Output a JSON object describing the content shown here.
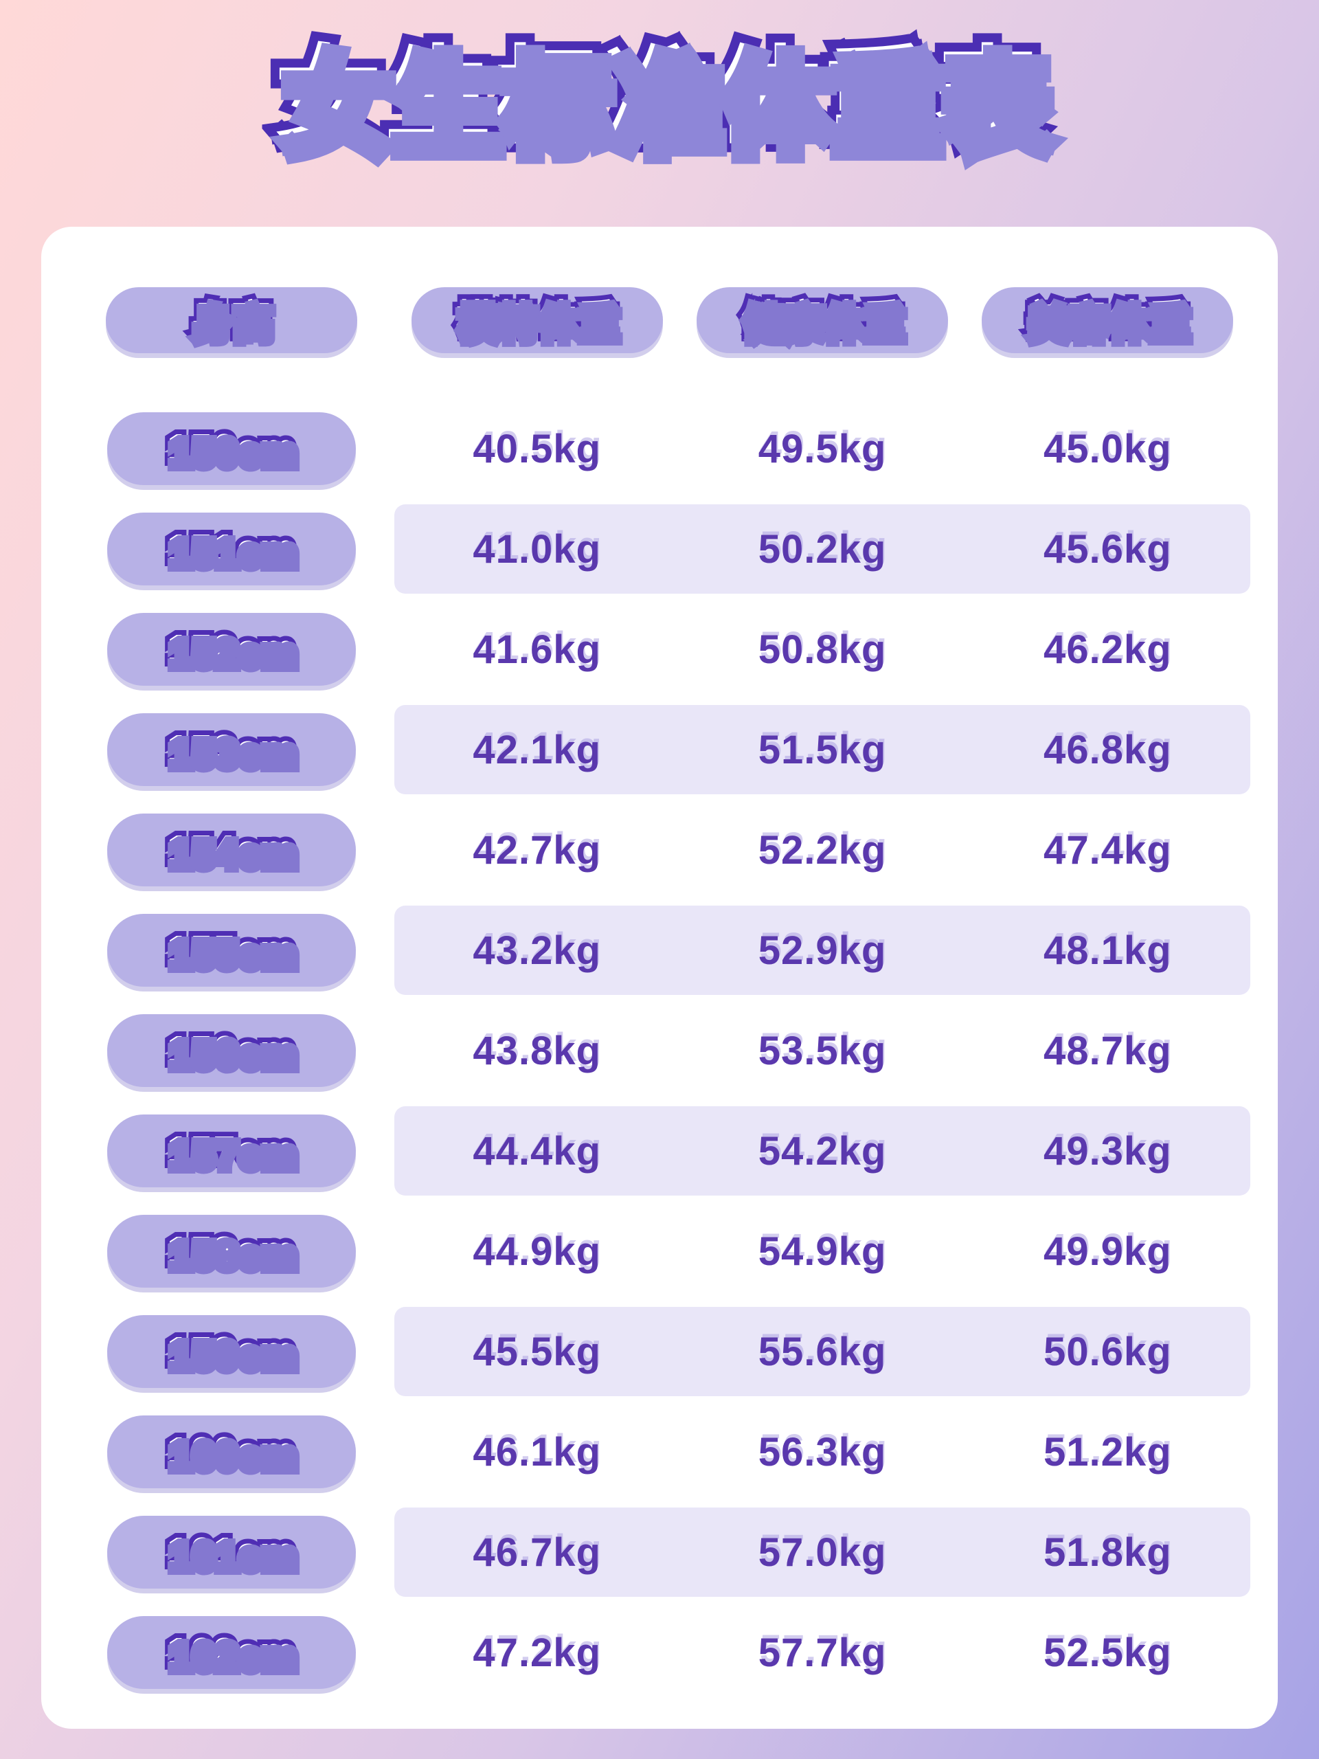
{
  "chart_data": {
    "type": "table",
    "title": "女生标准体重表",
    "columns": [
      "身高",
      "模特体重",
      "健康体重",
      "美容体重"
    ],
    "rows": [
      [
        "150cm",
        "40.5kg",
        "49.5kg",
        "45.0kg"
      ],
      [
        "151cm",
        "41.0kg",
        "50.2kg",
        "45.6kg"
      ],
      [
        "152cm",
        "41.6kg",
        "50.8kg",
        "46.2kg"
      ],
      [
        "153cm",
        "42.1kg",
        "51.5kg",
        "46.8kg"
      ],
      [
        "154cm",
        "42.7kg",
        "52.2kg",
        "47.4kg"
      ],
      [
        "155cm",
        "43.2kg",
        "52.9kg",
        "48.1kg"
      ],
      [
        "156cm",
        "43.8kg",
        "53.5kg",
        "48.7kg"
      ],
      [
        "157cm",
        "44.4kg",
        "54.2kg",
        "49.3kg"
      ],
      [
        "158cm",
        "44.9kg",
        "54.9kg",
        "49.9kg"
      ],
      [
        "159cm",
        "45.5kg",
        "55.6kg",
        "50.6kg"
      ],
      [
        "160cm",
        "46.1kg",
        "56.3kg",
        "51.2kg"
      ],
      [
        "161cm",
        "46.7kg",
        "57.0kg",
        "51.8kg"
      ],
      [
        "162cm",
        "47.2kg",
        "57.7kg",
        "52.5kg"
      ]
    ],
    "layout": {
      "striped_rows": [
        1,
        3,
        5,
        7,
        9,
        11
      ],
      "header_style": "pill",
      "grid": "off"
    }
  },
  "colors": {
    "background_gradient_start": "#ffd9d8",
    "background_gradient_end": "#a7a3e6",
    "card": "#ffffff",
    "pill": "#b7b1e6",
    "stripe": "#e9e6f8",
    "outline_purple": "#4b2eb3",
    "title_shadow_purple": "#8e86d8",
    "value_text": "#5a38ad"
  }
}
